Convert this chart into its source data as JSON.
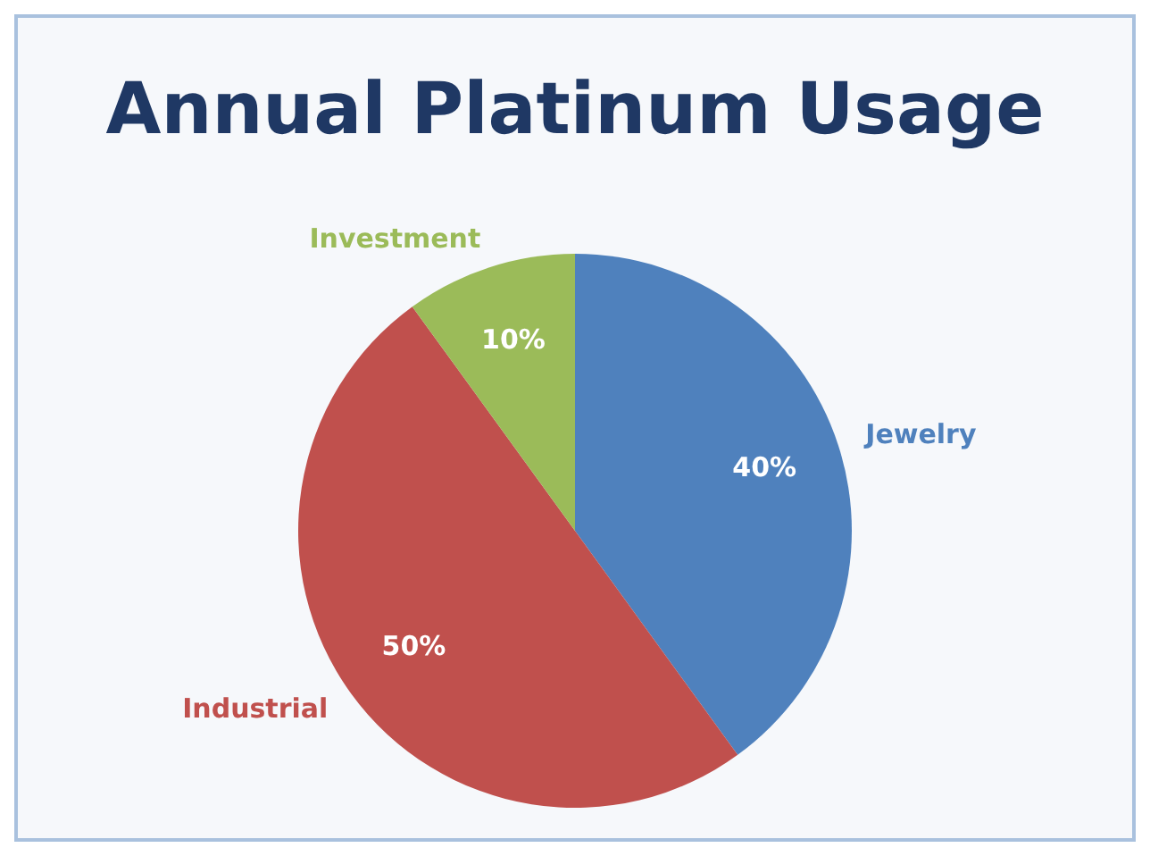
{
  "chart_data": {
    "type": "pie",
    "title": "Annual Platinum Usage",
    "categories": [
      "Jewelry",
      "Industrial",
      "Investment"
    ],
    "values": [
      40,
      50,
      10
    ],
    "value_labels": [
      "40%",
      "50%",
      "10%"
    ],
    "colors": [
      "#4f81bd",
      "#c0504d",
      "#9bbb59"
    ],
    "legend": false
  }
}
